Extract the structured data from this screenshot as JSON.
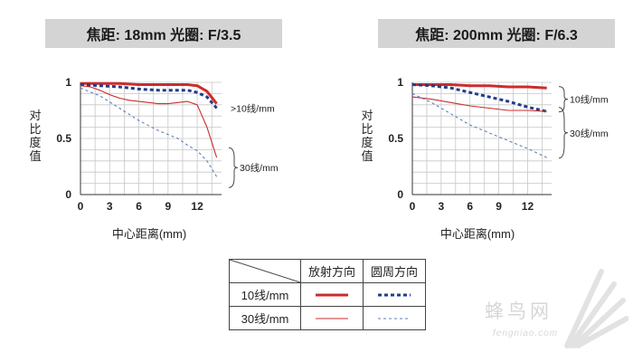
{
  "colors": {
    "red": "#cc2c2c",
    "blue": "#1f3d8a",
    "blue_light": "#5b7fb8",
    "grid": "#c7c7c7"
  },
  "legend": {
    "col_sagittal": "放射方向",
    "col_meridional": "圆周方向",
    "row_10": "10线/mm",
    "row_30": "30线/mm"
  },
  "watermark": {
    "text": "蜂鸟网",
    "url": "fengniao.com",
    "icon": "feather-fan-icon"
  },
  "chart_data": [
    {
      "type": "line",
      "title": "焦距: 18mm  光圈: F/3.5",
      "xlabel": "中心距离(mm)",
      "ylabel": "对比度值",
      "xlim": [
        0,
        14.5
      ],
      "ylim": [
        0,
        1
      ],
      "xticks": [
        0,
        3,
        6,
        9,
        12
      ],
      "yticks": [
        0,
        0.5,
        1
      ],
      "ytick_labels": [
        "0",
        "0.5",
        "1"
      ],
      "grid": true,
      "annotations": [
        {
          "text": ">10线/mm",
          "x": 14.5,
          "y": 0.77
        },
        {
          "text": "30线/mm",
          "x": 14.5,
          "y": 0.24
        }
      ],
      "series": [
        {
          "name": "10线/mm 放射方向",
          "style": "thick-solid-red",
          "x": [
            0,
            2,
            4,
            6,
            8,
            10,
            11,
            12,
            13,
            14
          ],
          "y": [
            0.99,
            0.99,
            0.99,
            0.98,
            0.98,
            0.98,
            0.98,
            0.97,
            0.92,
            0.81
          ]
        },
        {
          "name": "10线/mm 圆周方向",
          "style": "thick-dashed-blue",
          "x": [
            0,
            2,
            4,
            6,
            8,
            10,
            11,
            12,
            13,
            14
          ],
          "y": [
            0.98,
            0.97,
            0.96,
            0.94,
            0.93,
            0.93,
            0.93,
            0.91,
            0.87,
            0.77
          ]
        },
        {
          "name": "30线/mm 放射方向",
          "style": "thin-solid-red",
          "x": [
            0,
            1,
            2,
            3,
            4,
            5,
            6,
            7,
            8,
            9,
            10,
            11,
            12,
            13,
            14
          ],
          "y": [
            0.97,
            0.96,
            0.93,
            0.89,
            0.86,
            0.84,
            0.83,
            0.82,
            0.81,
            0.81,
            0.82,
            0.83,
            0.8,
            0.6,
            0.33
          ]
        },
        {
          "name": "30线/mm 圆周方向",
          "style": "thin-dashed-blue",
          "x": [
            0,
            2,
            4,
            6,
            8,
            10,
            11,
            12,
            13,
            14
          ],
          "y": [
            0.95,
            0.88,
            0.77,
            0.66,
            0.57,
            0.5,
            0.44,
            0.39,
            0.3,
            0.16
          ]
        }
      ]
    },
    {
      "type": "line",
      "title": "焦距: 200mm  光圈: F/6.3",
      "xlabel": "中心距离(mm)",
      "ylabel": "对比度值",
      "xlim": [
        0,
        14.5
      ],
      "ylim": [
        0,
        1
      ],
      "xticks": [
        0,
        3,
        6,
        9,
        12
      ],
      "yticks": [
        0,
        0.5,
        1
      ],
      "ytick_labels": [
        "0",
        "0.5",
        "1"
      ],
      "grid": true,
      "annotations": [
        {
          "text": "10线/mm",
          "x": 14.5,
          "y": 0.85
        },
        {
          "text": "30线/mm",
          "x": 14.5,
          "y": 0.55
        }
      ],
      "series": [
        {
          "name": "10线/mm 放射方向",
          "style": "thick-solid-red",
          "x": [
            0,
            2,
            4,
            6,
            8,
            10,
            12,
            14
          ],
          "y": [
            0.98,
            0.98,
            0.98,
            0.97,
            0.97,
            0.96,
            0.96,
            0.95
          ]
        },
        {
          "name": "10线/mm 圆周方向",
          "style": "thick-dashed-blue",
          "x": [
            0,
            2,
            4,
            6,
            8,
            10,
            12,
            14
          ],
          "y": [
            0.98,
            0.97,
            0.95,
            0.91,
            0.87,
            0.83,
            0.78,
            0.74
          ]
        },
        {
          "name": "30线/mm 放射方向",
          "style": "thin-solid-red",
          "x": [
            0,
            2,
            4,
            6,
            8,
            10,
            12,
            14
          ],
          "y": [
            0.87,
            0.85,
            0.82,
            0.79,
            0.77,
            0.75,
            0.75,
            0.74
          ]
        },
        {
          "name": "30线/mm 圆周方向",
          "style": "thin-dashed-blue",
          "x": [
            0,
            2,
            4,
            6,
            8,
            10,
            12,
            14
          ],
          "y": [
            0.9,
            0.82,
            0.72,
            0.62,
            0.55,
            0.48,
            0.41,
            0.33
          ]
        }
      ]
    }
  ]
}
